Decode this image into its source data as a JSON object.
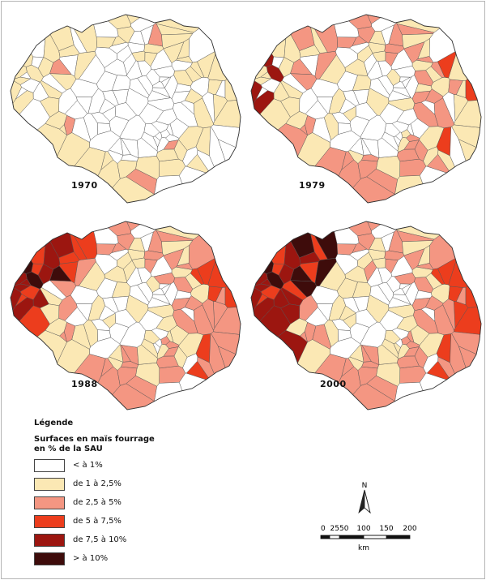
{
  "maps": [
    {
      "year": "1970",
      "key": "1970"
    },
    {
      "year": "1979",
      "key": "1979"
    },
    {
      "year": "1988",
      "key": "1988"
    },
    {
      "year": "2000",
      "key": "2000"
    }
  ],
  "legend": {
    "title": "Légende",
    "subtitle_line1": "Surfaces en maïs fourrage",
    "subtitle_line2": "en % de la SAU",
    "classes": [
      {
        "label": "< à 1%",
        "color": "#ffffff"
      },
      {
        "label": "de 1 à 2,5%",
        "color": "#fbe8b4"
      },
      {
        "label": "de 2,5 à 5%",
        "color": "#f49682"
      },
      {
        "label": "de 5 à 7,5%",
        "color": "#ec3d1d"
      },
      {
        "label": "de 7,5 à 10%",
        "color": "#9c1610"
      },
      {
        "label": "> à 10%",
        "color": "#3e0c0b"
      }
    ]
  },
  "scale": {
    "north": "N",
    "ticks": [
      "0",
      "2550",
      "100",
      "150",
      "200"
    ],
    "unit": "km"
  },
  "colors": {
    "border": "#555555",
    "frame": "#b5b5b5"
  }
}
